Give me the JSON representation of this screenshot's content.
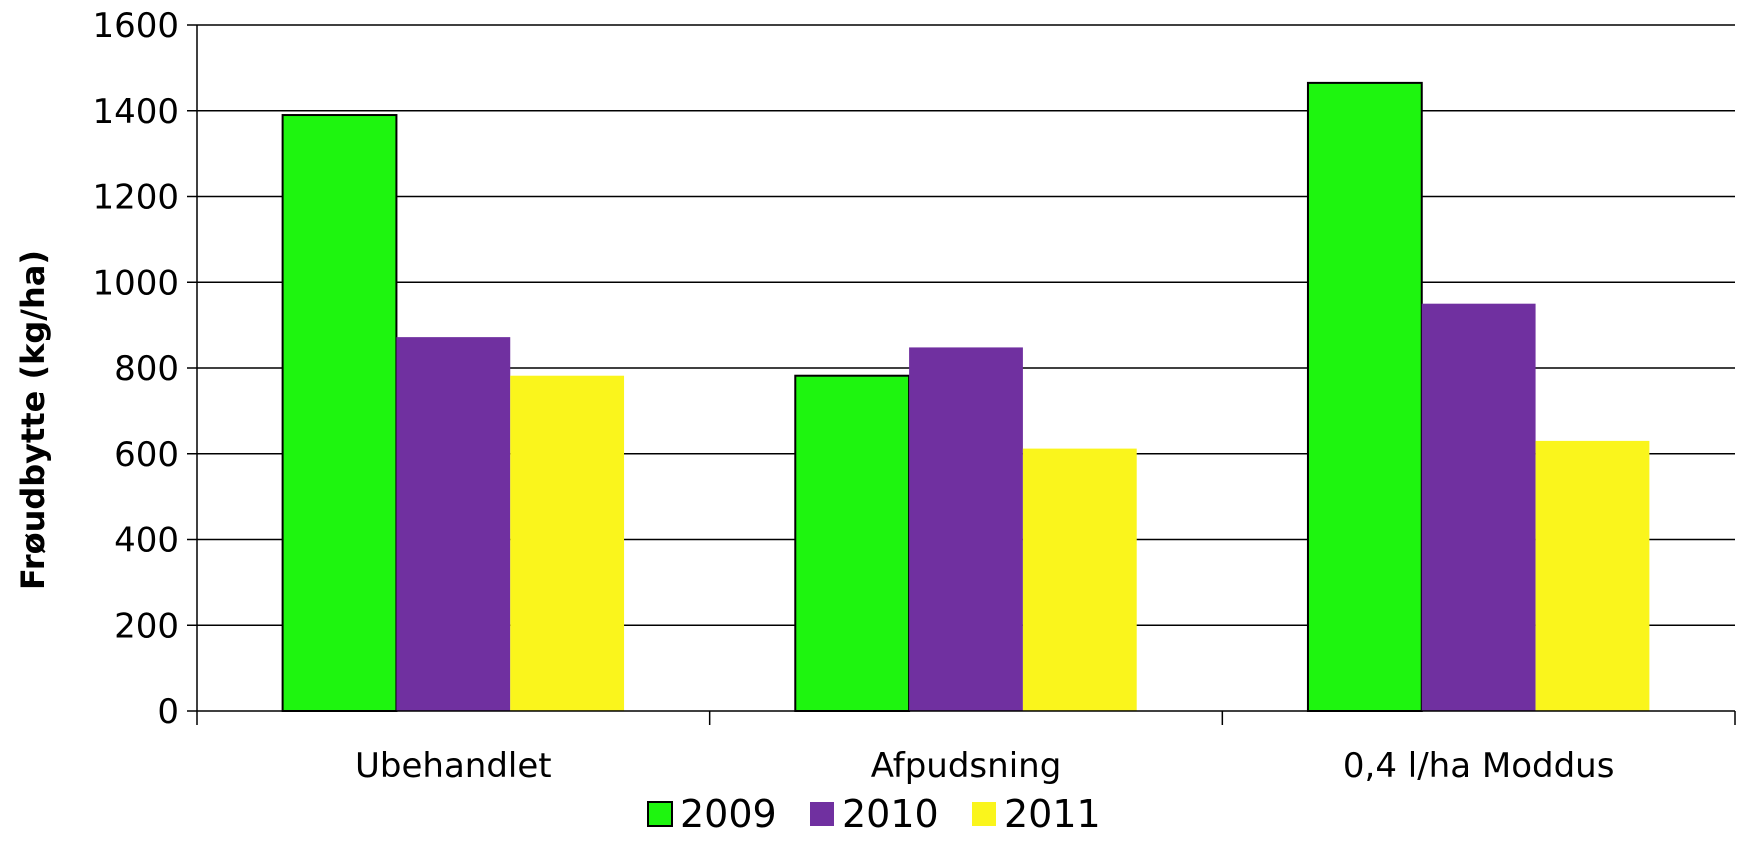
{
  "chart_data": {
    "type": "bar",
    "title": "",
    "xlabel": "",
    "ylabel": "Frøudbytte (kg/ha)",
    "ylim": [
      0,
      1600
    ],
    "yticks": [
      0,
      200,
      400,
      600,
      800,
      1000,
      1200,
      1400,
      1600
    ],
    "grid": true,
    "legend_position": "bottom",
    "categories": [
      "Ubehandlet",
      "Afpudsning",
      "0,4 l/ha Moddus"
    ],
    "series": [
      {
        "name": "2009",
        "color": "#1ef50f",
        "outlined": true,
        "values": [
          1390,
          782,
          1465
        ]
      },
      {
        "name": "2010",
        "color": "#7030a0",
        "outlined": false,
        "values": [
          872,
          848,
          950
        ]
      },
      {
        "name": "2011",
        "color": "#faf51c",
        "outlined": false,
        "values": [
          782,
          612,
          630
        ]
      }
    ]
  }
}
